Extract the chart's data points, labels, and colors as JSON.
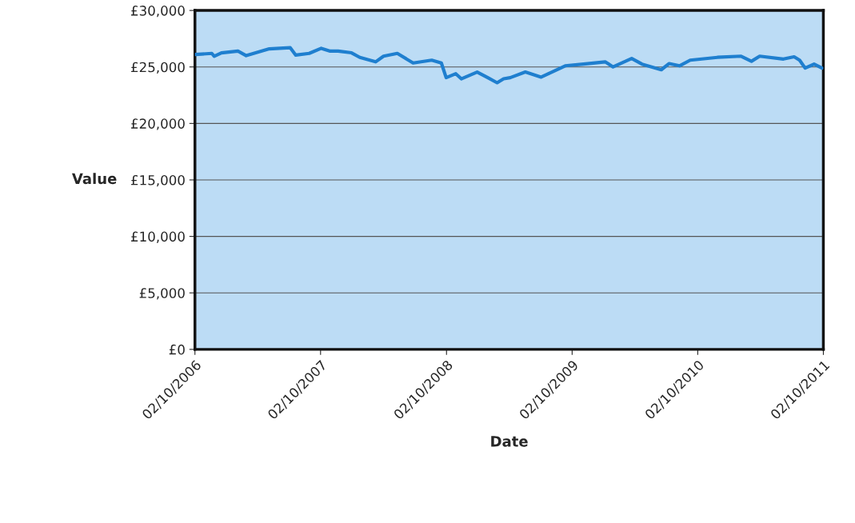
{
  "chart_data": {
    "type": "line",
    "xlabel": "Date",
    "ylabel": "Value",
    "x": [
      "2006-10-04",
      "2006-11-20",
      "2006-11-27",
      "2006-12-18",
      "2007-02-04",
      "2007-02-28",
      "2007-05-06",
      "2007-07-06",
      "2007-07-22",
      "2007-08-30",
      "2007-10-04",
      "2007-10-30",
      "2007-11-22",
      "2007-12-31",
      "2008-01-24",
      "2008-03-10",
      "2008-04-02",
      "2008-05-12",
      "2008-06-27",
      "2008-08-20",
      "2008-09-17",
      "2008-10-01",
      "2008-10-29",
      "2008-11-14",
      "2008-12-30",
      "2009-01-30",
      "2009-02-26",
      "2009-03-17",
      "2009-04-05",
      "2009-05-19",
      "2009-07-04",
      "2009-09-12",
      "2009-11-04",
      "2010-01-06",
      "2010-01-29",
      "2010-03-24",
      "2010-04-23",
      "2010-06-18",
      "2010-07-11",
      "2010-08-10",
      "2010-09-10",
      "2010-11-28",
      "2011-02-05",
      "2011-03-07",
      "2011-03-31",
      "2011-06-08",
      "2011-07-09",
      "2011-07-25",
      "2011-08-10",
      "2011-09-05",
      "2011-09-28"
    ],
    "series": [
      {
        "color": "#1f7fcf",
        "values": [
          26100,
          26200,
          25950,
          26250,
          26400,
          26000,
          26600,
          26700,
          26050,
          26200,
          26650,
          26400,
          26400,
          26250,
          25850,
          25450,
          25950,
          26200,
          25350,
          25600,
          25350,
          24050,
          24400,
          23950,
          24550,
          24050,
          23600,
          23950,
          24050,
          24550,
          24100,
          25100,
          25250,
          25450,
          25000,
          25750,
          25250,
          24750,
          25300,
          25100,
          25600,
          25850,
          25950,
          25500,
          25950,
          25700,
          25900,
          25600,
          24900,
          25250,
          24900
        ]
      }
    ],
    "xlim": [
      "2006-10-02",
      "2011-10-02"
    ],
    "xticks": [
      {
        "value": "2006-10-02",
        "label": "02/10/2006"
      },
      {
        "value": "2007-10-02",
        "label": "02/10/2007"
      },
      {
        "value": "2008-10-02",
        "label": "02/10/2008"
      },
      {
        "value": "2009-10-02",
        "label": "02/10/2009"
      },
      {
        "value": "2010-10-02",
        "label": "02/10/2010"
      },
      {
        "value": "2011-10-02",
        "label": "02/10/2011"
      }
    ],
    "ylim": [
      0,
      30000
    ],
    "yticks": [
      {
        "value": 0,
        "label": "£0"
      },
      {
        "value": 5000,
        "label": "£5,000"
      },
      {
        "value": 10000,
        "label": "£10,000"
      },
      {
        "value": 15000,
        "label": "£15,000"
      },
      {
        "value": 20000,
        "label": "£20,000"
      },
      {
        "value": 25000,
        "label": "£25,000"
      },
      {
        "value": 30000,
        "label": "£30,000"
      }
    ],
    "grid": "y",
    "marker": "none",
    "line_style": "solid"
  }
}
